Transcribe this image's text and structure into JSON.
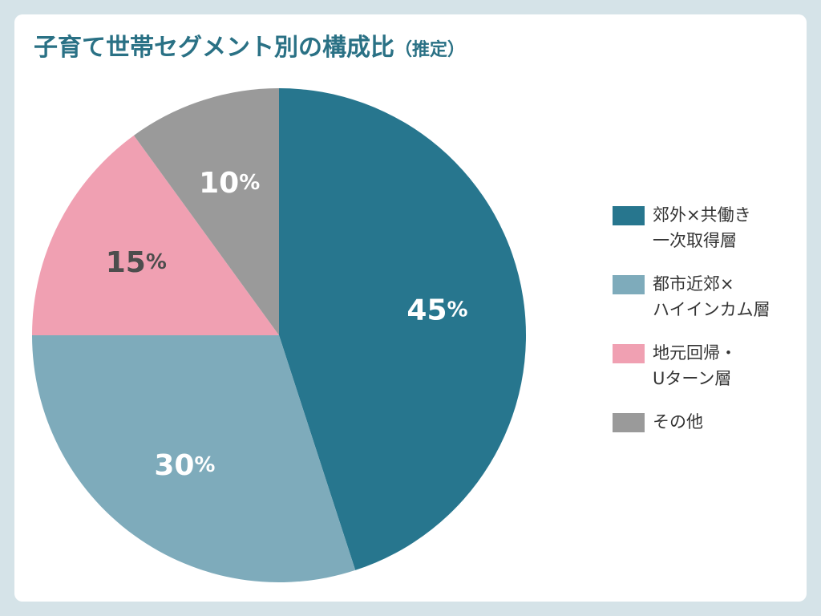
{
  "title": {
    "main": "子育て世帯セグメント別の構成比",
    "suffix": "（推定）"
  },
  "chart_data": {
    "type": "pie",
    "title": "子育て世帯セグメント別の構成比（推定）",
    "legend_position": "right",
    "slices": [
      {
        "name": "郊外×共働き一次取得層",
        "legend_text": "郊外×共働き\n一次取得層",
        "value": 45,
        "value_label": "45",
        "unit": "%",
        "color": "#27768e",
        "label_color": "#ffffff"
      },
      {
        "name": "都市近郊×ハイインカム層",
        "legend_text": "都市近郊×\nハイインカム層",
        "value": 30,
        "value_label": "30",
        "unit": "%",
        "color": "#7eabbb",
        "label_color": "#ffffff"
      },
      {
        "name": "地元回帰・Uターン層",
        "legend_text": "地元回帰・\nUターン層",
        "value": 15,
        "value_label": "15",
        "unit": "%",
        "color": "#f0a0b2",
        "label_color": "#4d4d4d"
      },
      {
        "name": "その他",
        "legend_text": "その他",
        "value": 10,
        "value_label": "10",
        "unit": "%",
        "color": "#9a9a9a",
        "label_color": "#ffffff"
      }
    ]
  }
}
